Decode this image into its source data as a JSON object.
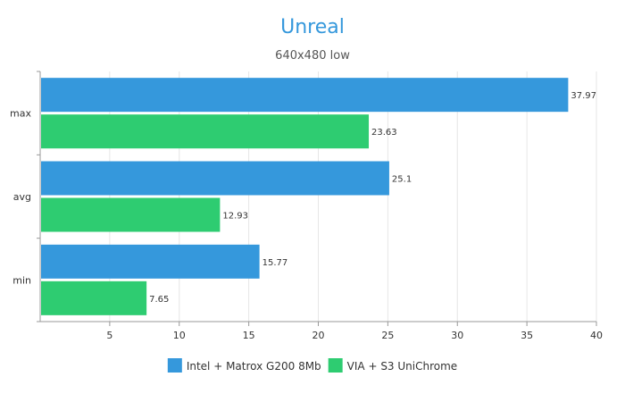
{
  "chart_data": {
    "type": "bar",
    "orientation": "horizontal",
    "title": "Unreal",
    "subtitle": "640x480 low",
    "categories": [
      "max",
      "avg",
      "min"
    ],
    "series": [
      {
        "name": "Intel + Matrox G200 8Mb",
        "color": "#3598dc",
        "values": [
          37.97,
          25.1,
          15.77
        ]
      },
      {
        "name": "VIA + S3 UniChrome",
        "color": "#2ecc71",
        "values": [
          23.63,
          12.93,
          7.65
        ]
      }
    ],
    "xlim": [
      0,
      40
    ],
    "xticks": [
      5,
      10,
      15,
      20,
      25,
      30,
      35,
      40
    ],
    "grid": true,
    "legend": "bottom-center",
    "xlabel": "",
    "ylabel": ""
  }
}
